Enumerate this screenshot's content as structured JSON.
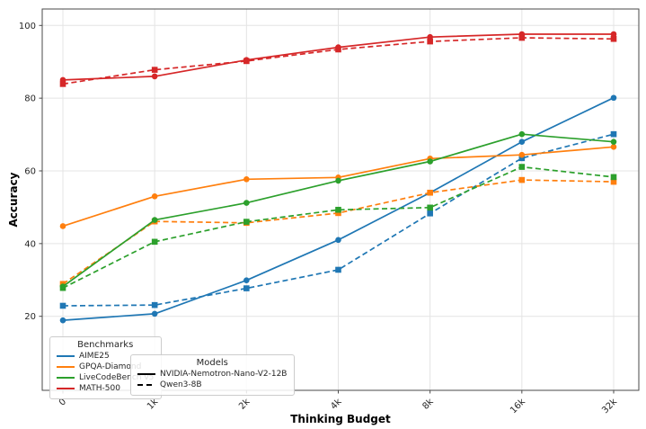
{
  "chart_data": {
    "type": "line",
    "title": "",
    "xlabel": "Thinking Budget",
    "ylabel": "Accuracy",
    "categories": [
      "0",
      "1k",
      "2k",
      "4k",
      "8k",
      "16k",
      "32k"
    ],
    "y_ticks": [
      20,
      40,
      60,
      80,
      100
    ],
    "ylim": [
      0,
      104.5
    ],
    "grid": true,
    "colors": {
      "AIME25": "#1f77b4",
      "GPQA-Diamond": "#ff7f0e",
      "LiveCodeBench v5": "#2ca02c",
      "MATH-500": "#d62728",
      "grid": "#e4e4e4",
      "spine": "#4a4a4a",
      "tick_text": "#262626"
    },
    "legends": {
      "benchmarks": {
        "title": "Benchmarks",
        "items": [
          {
            "label": "AIME25",
            "color": "#1f77b4"
          },
          {
            "label": "GPQA-Diamond",
            "color": "#ff7f0e"
          },
          {
            "label": "LiveCodeBench v5",
            "color": "#2ca02c"
          },
          {
            "label": "MATH-500",
            "color": "#d62728"
          }
        ]
      },
      "models": {
        "title": "Models",
        "items": [
          {
            "label": "NVIDIA-Nemotron-Nano-V2-12B",
            "dash": "solid"
          },
          {
            "label": "Qwen3-8B",
            "dash": "dashed"
          }
        ]
      }
    },
    "series": [
      {
        "benchmark": "AIME25",
        "model": "NVIDIA-Nemotron-Nano-V2-12B",
        "color": "#1f77b4",
        "style": "solid",
        "marker": "circle",
        "values": [
          18.9,
          20.7,
          29.9,
          41.0,
          54.0,
          68.0,
          80.1
        ]
      },
      {
        "benchmark": "AIME25",
        "model": "Qwen3-8B",
        "color": "#1f77b4",
        "style": "dashed",
        "marker": "square",
        "values": [
          22.9,
          23.1,
          27.7,
          32.8,
          48.3,
          63.5,
          70.1
        ]
      },
      {
        "benchmark": "GPQA-Diamond",
        "model": "NVIDIA-Nemotron-Nano-V2-12B",
        "color": "#ff7f0e",
        "style": "solid",
        "marker": "circle",
        "values": [
          44.8,
          53.0,
          57.7,
          58.2,
          63.4,
          64.4,
          66.6
        ]
      },
      {
        "benchmark": "GPQA-Diamond",
        "model": "Qwen3-8B",
        "color": "#ff7f0e",
        "style": "dashed",
        "marker": "square",
        "values": [
          28.9,
          46.1,
          45.7,
          48.4,
          54.0,
          57.5,
          57.0
        ]
      },
      {
        "benchmark": "LiveCodeBench v5",
        "model": "NVIDIA-Nemotron-Nano-V2-12B",
        "color": "#2ca02c",
        "style": "solid",
        "marker": "circle",
        "values": [
          28.2,
          46.5,
          51.2,
          57.3,
          62.6,
          70.1,
          68.0
        ]
      },
      {
        "benchmark": "LiveCodeBench v5",
        "model": "Qwen3-8B",
        "color": "#2ca02c",
        "style": "dashed",
        "marker": "square",
        "values": [
          27.8,
          40.5,
          46.0,
          49.3,
          49.9,
          61.1,
          58.3
        ]
      },
      {
        "benchmark": "MATH-500",
        "model": "NVIDIA-Nemotron-Nano-V2-12B",
        "color": "#d62728",
        "style": "solid",
        "marker": "circle",
        "values": [
          85.0,
          86.0,
          90.5,
          94.0,
          96.8,
          97.6,
          97.6
        ]
      },
      {
        "benchmark": "MATH-500",
        "model": "Qwen3-8B",
        "color": "#d62728",
        "style": "dashed",
        "marker": "square",
        "values": [
          83.9,
          87.8,
          90.2,
          93.4,
          95.6,
          96.6,
          96.3
        ]
      }
    ]
  }
}
